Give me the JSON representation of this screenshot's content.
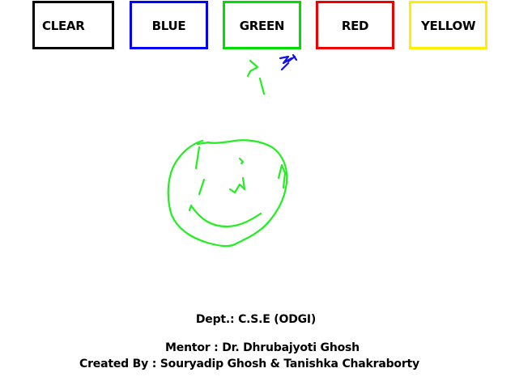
{
  "toolbar": {
    "buttons": [
      {
        "label": "CLEAR",
        "border_color": "#000000"
      },
      {
        "label": "BLUE",
        "border_color": "#0000ff"
      },
      {
        "label": "GREEN",
        "border_color": "#00dd00"
      },
      {
        "label": "RED",
        "border_color": "#ee0000"
      },
      {
        "label": "YELLOW",
        "border_color": "#ffee00"
      }
    ]
  },
  "canvas": {
    "stroke_colors": {
      "green": "#22ee22",
      "blue": "#1111ee"
    },
    "drawing_icon": "smiley-face-doodle"
  },
  "credits": {
    "dept": "Dept.: C.S.E (ODGI)",
    "mentor": "Mentor : Dr. Dhrubajyoti Ghosh",
    "created_by": "Created By : Souryadip Ghosh & Tanishka Chakraborty"
  }
}
